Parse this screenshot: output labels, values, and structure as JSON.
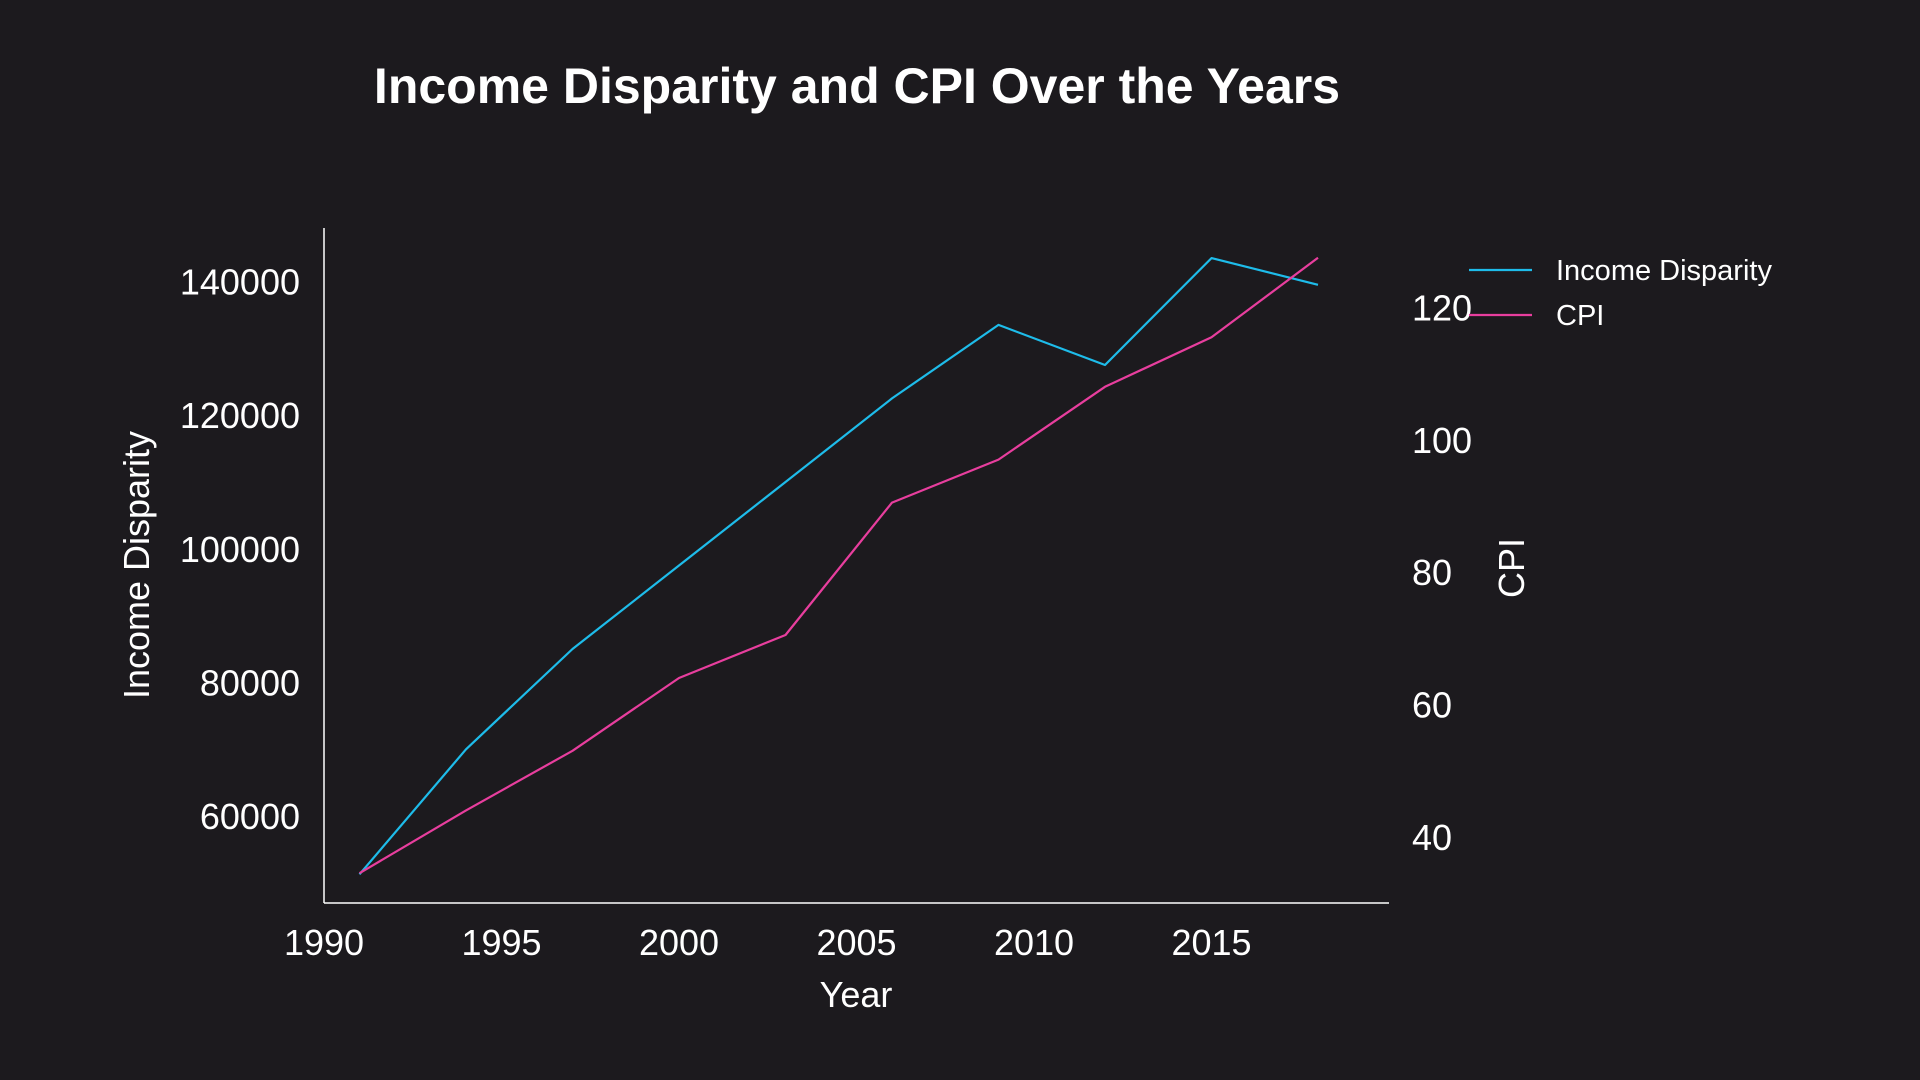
{
  "chart_data": {
    "type": "line",
    "title": "Income Disparity and CPI Over the Years",
    "xlabel": "Year",
    "ylabel": "Income Disparity",
    "ylabel_right": "CPI",
    "x": [
      1991,
      1994,
      1997,
      2000,
      2003,
      2006,
      2009,
      2012,
      2015,
      2018
    ],
    "xlim": [
      1990,
      2020
    ],
    "xticks": [
      "1990",
      "1995",
      "2000",
      "2005",
      "2010",
      "2015"
    ],
    "xtick_values": [
      1990,
      1995,
      2000,
      2005,
      2010,
      2015
    ],
    "ylim": [
      47000,
      148000
    ],
    "yticks": [
      "60000",
      "80000",
      "100000",
      "120000",
      "140000"
    ],
    "ytick_values": [
      60000,
      80000,
      100000,
      120000,
      140000
    ],
    "ylim_right": [
      30,
      132
    ],
    "yticks_right": [
      "40",
      "60",
      "80",
      "100",
      "120"
    ],
    "ytick_values_right": [
      40,
      60,
      80,
      100,
      120
    ],
    "series": [
      {
        "name": "Income Disparity",
        "axis": "left",
        "color": "#1ebcea",
        "values": [
          51300,
          70000,
          85000,
          97500,
          110000,
          122500,
          133500,
          127500,
          143500,
          139500
        ]
      },
      {
        "name": "CPI",
        "axis": "right",
        "color": "#e83e9e",
        "values": [
          34.5,
          44,
          53,
          64,
          70.5,
          90.5,
          97,
          108,
          115.5,
          127.5
        ]
      }
    ],
    "legend_position": "top-right",
    "grid": false
  }
}
